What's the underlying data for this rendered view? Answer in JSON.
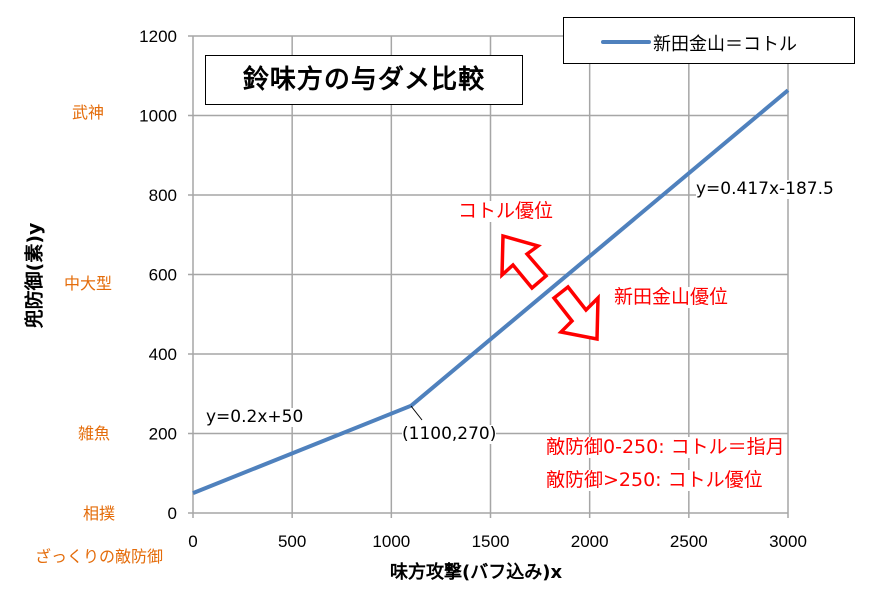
{
  "chart_data": {
    "type": "line",
    "title": "鈴味方の与ダメ比較",
    "xlabel": "味方攻撃(バフ込み)x",
    "ylabel": "兜防御(素)y",
    "xlim": [
      0,
      3000
    ],
    "ylim": [
      0,
      1200
    ],
    "xticks": [
      0,
      500,
      1000,
      1500,
      2000,
      2500,
      3000
    ],
    "yticks": [
      0,
      200,
      400,
      600,
      800,
      1000,
      1200
    ],
    "grid": true,
    "legend_placement": "top-right",
    "series": [
      {
        "name": "新田金山＝コトル",
        "color": "#4f81bd",
        "x": [
          0,
          1100,
          3000
        ],
        "y": [
          50,
          270,
          1063.5
        ]
      }
    ],
    "annotations": {
      "eq1": "y=0.2x+50",
      "eq2": "y=0.417x-187.5",
      "breakpoint": "(1100,270)",
      "above": "コトル優位",
      "below": "新田金山優位",
      "note1": "敵防御0-250: コトル＝指月",
      "note2": "敵防御>250: コトル優位"
    },
    "y_category_labels": [
      {
        "label": "武神",
        "y": 1000
      },
      {
        "label": "中大型",
        "y": 600
      },
      {
        "label": "雑魚",
        "y": 200
      },
      {
        "label": "相撲",
        "y": 0
      }
    ],
    "y_category_title": "ざっくりの敵防御",
    "colors": {
      "line": "#4f81bd",
      "annotation": "#ff0000",
      "category": "#e46c0a",
      "grid": "#a6a6a6"
    }
  }
}
